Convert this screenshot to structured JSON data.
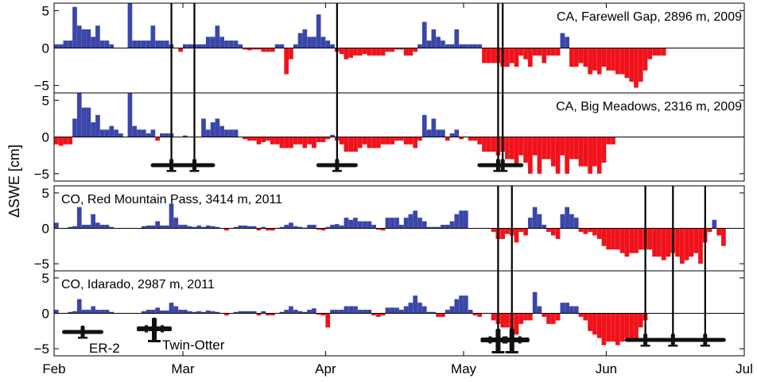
{
  "chart_data": {
    "type": "bar",
    "ylabel": "ΔSWE [cm]",
    "x_ticks": [
      "Feb",
      "Mar",
      "Apr",
      "May",
      "Jun",
      "Jul"
    ],
    "colors": {
      "positive": "#3a46a8",
      "negative": "#f0121b",
      "flight_line": "#000000"
    },
    "legend": {
      "items": [
        {
          "name": "ER-2",
          "icon": "er2-plane-icon"
        },
        {
          "name": "Twin-Otter",
          "icon": "twin-otter-plane-icon"
        }
      ],
      "placement": "bottom-left"
    },
    "panels": [
      {
        "label": "CA, Farewell Gap, 2896 m, 2009",
        "ylim": [
          -6,
          6
        ],
        "yticks": [
          "5",
          "0",
          "−5"
        ],
        "start_date": "2009-02-01",
        "values": [
          0.5,
          0.5,
          1,
          1,
          5.5,
          3,
          2.5,
          2.5,
          1.5,
          3,
          1,
          1,
          0.5,
          0,
          0,
          0,
          6,
          1,
          1,
          1,
          1,
          3,
          1,
          1,
          1,
          0.5,
          0,
          -0.5,
          0.5,
          0.5,
          0.5,
          0.5,
          0.5,
          1.5,
          1.5,
          3,
          1.5,
          1,
          1,
          1,
          0.5,
          -0.2,
          -0.3,
          -0.2,
          -0.2,
          -0.5,
          -0.5,
          -0.5,
          0.5,
          0.5,
          -3.5,
          -1.5,
          0.5,
          2,
          2.5,
          1.5,
          1.5,
          4.5,
          1.5,
          1,
          0.5,
          -0.5,
          -0.8,
          -1.5,
          -1.3,
          -1,
          -1,
          -0.8,
          -1,
          -1,
          -1,
          -1,
          -0.5,
          -0.5,
          -0.2,
          -0.2,
          -1,
          -1,
          -0.5,
          0.5,
          3.5,
          1,
          2.5,
          1.5,
          1,
          0.5,
          0.5,
          2.5,
          0.5,
          0.5,
          0.5,
          0.5,
          0.5,
          -2,
          -2,
          -2,
          -2,
          -2.5,
          -2.5,
          -2,
          -2.5,
          -1,
          -1.5,
          -2.5,
          -1,
          -1,
          -2,
          -1,
          -1,
          -1,
          2,
          1.5,
          -2.5,
          -2.5,
          -2,
          -2.5,
          -3.5,
          -3,
          -3.5,
          -2.5,
          -3,
          -3,
          -3.5,
          -3.5,
          -4,
          -4.5,
          -5.3,
          -4.5,
          -3,
          -1.5,
          -1,
          -1,
          -1
        ],
        "flights": [
          {
            "date": "2009-02-26",
            "platform": "none"
          },
          {
            "date": "2009-03-03",
            "platform": "none"
          },
          {
            "date": "2009-04-03",
            "platform": "none"
          },
          {
            "date": "2009-05-08",
            "platform": "none"
          },
          {
            "date": "2009-05-09",
            "platform": "none"
          }
        ]
      },
      {
        "label": "CA, Big Meadows, 2316 m, 2009",
        "ylim": [
          -6,
          6
        ],
        "yticks": [
          "5",
          "0",
          "−5"
        ],
        "start_date": "2009-02-01",
        "values": [
          -1,
          -1.2,
          -1,
          -1,
          2.5,
          6,
          4,
          4,
          2,
          3,
          1,
          1,
          1.5,
          1,
          0.5,
          0,
          6,
          1.5,
          1,
          1,
          0.5,
          1,
          -0.5,
          0.5,
          0.5,
          0.5,
          0,
          0,
          0.2,
          0,
          0,
          0,
          2.5,
          1,
          2,
          2.5,
          1.5,
          1,
          1,
          1,
          0,
          -0.3,
          -0.5,
          -0.5,
          -1,
          -0.7,
          -0.5,
          -1,
          -1,
          -1.5,
          -1.5,
          -1.5,
          -1,
          -1,
          -1.5,
          -1,
          -1.5,
          -0.7,
          -0.7,
          -0.3,
          0.3,
          -0.5,
          -1,
          -2,
          -2,
          -2,
          -1.5,
          -1,
          -1.5,
          -1.5,
          -1.5,
          -1,
          -1,
          -1,
          -0.5,
          -0.5,
          -1,
          -1,
          -1.5,
          -0.5,
          3,
          1,
          2.5,
          1,
          1,
          -0.5,
          0.5,
          1,
          -0.3,
          0,
          -0.5,
          -0.5,
          -1,
          -2,
          -2,
          -2,
          -2.5,
          -2,
          -3,
          -3,
          -4,
          -2.5,
          -3.5,
          -5,
          -2.5,
          -5,
          -3,
          -3,
          -4,
          -5,
          -2.5,
          -5,
          -3,
          -3,
          -4,
          -4,
          -5,
          -4,
          -5,
          -3.5,
          -1,
          -1
        ],
        "flights": [
          {
            "date": "2009-02-26",
            "platform": "ER-2"
          },
          {
            "date": "2009-03-03",
            "platform": "ER-2"
          },
          {
            "date": "2009-04-03",
            "platform": "ER-2"
          },
          {
            "date": "2009-05-08",
            "platform": "ER-2"
          },
          {
            "date": "2009-05-09",
            "platform": "ER-2"
          }
        ]
      },
      {
        "label": "CO, Red Mountain Pass, 3414 m, 2011",
        "ylim": [
          -6,
          6
        ],
        "yticks": [
          "5",
          "0",
          "−5"
        ],
        "start_date": "2011-02-01",
        "values": [
          0.8,
          0,
          0,
          0.2,
          0.3,
          3,
          0.5,
          0.5,
          2,
          0.8,
          0.5,
          0.5,
          0.2,
          0,
          0,
          0,
          0,
          0,
          0,
          0.3,
          0.4,
          0.4,
          1,
          0.4,
          0.4,
          3.5,
          1.5,
          0.5,
          0.5,
          0.3,
          0.2,
          0.4,
          0.2,
          0.4,
          0.3,
          0.2,
          0,
          -0.3,
          0,
          0.2,
          0.4,
          0.4,
          0.3,
          0.3,
          -0.3,
          0.2,
          -0.3,
          -0.3,
          0,
          0.2,
          0.5,
          0.8,
          0.3,
          0.2,
          0.1,
          0.5,
          0.5,
          -0.2,
          -0.3,
          0.2,
          0.5,
          0.6,
          0.4,
          1.5,
          1.2,
          1.5,
          1,
          1,
          1,
          0.5,
          -0.2,
          -0.3,
          1.5,
          1.5,
          1.5,
          0.5,
          1.5,
          2,
          2.5,
          1.5,
          1,
          0.2,
          0.2,
          0.2,
          0.5,
          0.5,
          1,
          2,
          2.5,
          2.5,
          0,
          0,
          0,
          0,
          0,
          -0.5,
          -1.5,
          -1.5,
          -0.8,
          -1,
          -2,
          -0.5,
          -1,
          1.5,
          3,
          2,
          0.5,
          -0.5,
          -1,
          -1.5,
          2,
          3,
          2,
          1.5,
          -0.5,
          -0.8,
          -0.5,
          -1,
          -1.5,
          -2.5,
          -3,
          -3,
          -3,
          -3.5,
          -4,
          -3.5,
          -3.5,
          -3,
          -3,
          -3,
          -4,
          -4,
          -4.5,
          -4,
          -3.5,
          -4,
          -5,
          -4.5,
          -4,
          -3.5,
          -5,
          -2,
          -0.5,
          1.2,
          -1,
          -2.5,
          0
        ],
        "flights": [
          {
            "date": "2011-05-08",
            "platform": "none"
          },
          {
            "date": "2011-05-11",
            "platform": "none"
          },
          {
            "date": "2011-06-09",
            "platform": "none"
          },
          {
            "date": "2011-06-15",
            "platform": "none"
          },
          {
            "date": "2011-06-22",
            "platform": "none"
          }
        ]
      },
      {
        "label": "CO, Idarado, 2987 m, 2011",
        "ylim": [
          -6,
          6
        ],
        "yticks": [
          "5",
          "0",
          "−5"
        ],
        "start_date": "2011-02-01",
        "values": [
          0.5,
          0,
          0,
          0.2,
          0.3,
          2,
          0.5,
          0.5,
          1,
          0.5,
          0.5,
          0.5,
          0.2,
          0,
          0,
          0,
          0,
          0,
          0,
          0.3,
          0.5,
          0.5,
          0.8,
          0.4,
          0.4,
          1.5,
          1,
          0.5,
          0.5,
          0.3,
          0.2,
          0.3,
          0.2,
          0.4,
          0.3,
          0.2,
          0,
          -0.3,
          0,
          0.2,
          0.3,
          0.3,
          0.3,
          0.3,
          -0.3,
          0.3,
          -0.3,
          -0.3,
          0,
          0.2,
          0.5,
          1,
          0.5,
          0.3,
          0.2,
          0.5,
          0.7,
          -0.2,
          -0.3,
          -2,
          0.5,
          0.5,
          0.5,
          1,
          1,
          1,
          0.5,
          0.5,
          0.5,
          -0.3,
          -0.5,
          -0.3,
          0.8,
          0.8,
          0.8,
          0.5,
          1,
          1.5,
          2.5,
          1.5,
          1,
          0.2,
          0.2,
          -0.5,
          -0.5,
          0.5,
          1,
          2,
          2.5,
          2.5,
          0.5,
          -0.3,
          -0.5,
          0,
          0,
          -1,
          -1.5,
          -2,
          -2,
          -2.5,
          -3,
          -1.5,
          -1,
          -1,
          3,
          1,
          -0.5,
          -1.5,
          -1.5,
          -1,
          1.5,
          1.5,
          1,
          1,
          -0.5,
          -1,
          -2.5,
          -3,
          -3.5,
          -4.5,
          -4,
          -4,
          -4.5,
          -4,
          -3.5,
          -4,
          -3.5,
          -2,
          -1
        ],
        "flights": [
          {
            "date": "2011-05-08",
            "platform": "Twin-Otter"
          },
          {
            "date": "2011-05-11",
            "platform": "Twin-Otter"
          },
          {
            "date": "2011-06-09",
            "platform": "ER-2"
          },
          {
            "date": "2011-06-15",
            "platform": "ER-2"
          },
          {
            "date": "2011-06-22",
            "platform": "ER-2"
          }
        ]
      }
    ]
  }
}
